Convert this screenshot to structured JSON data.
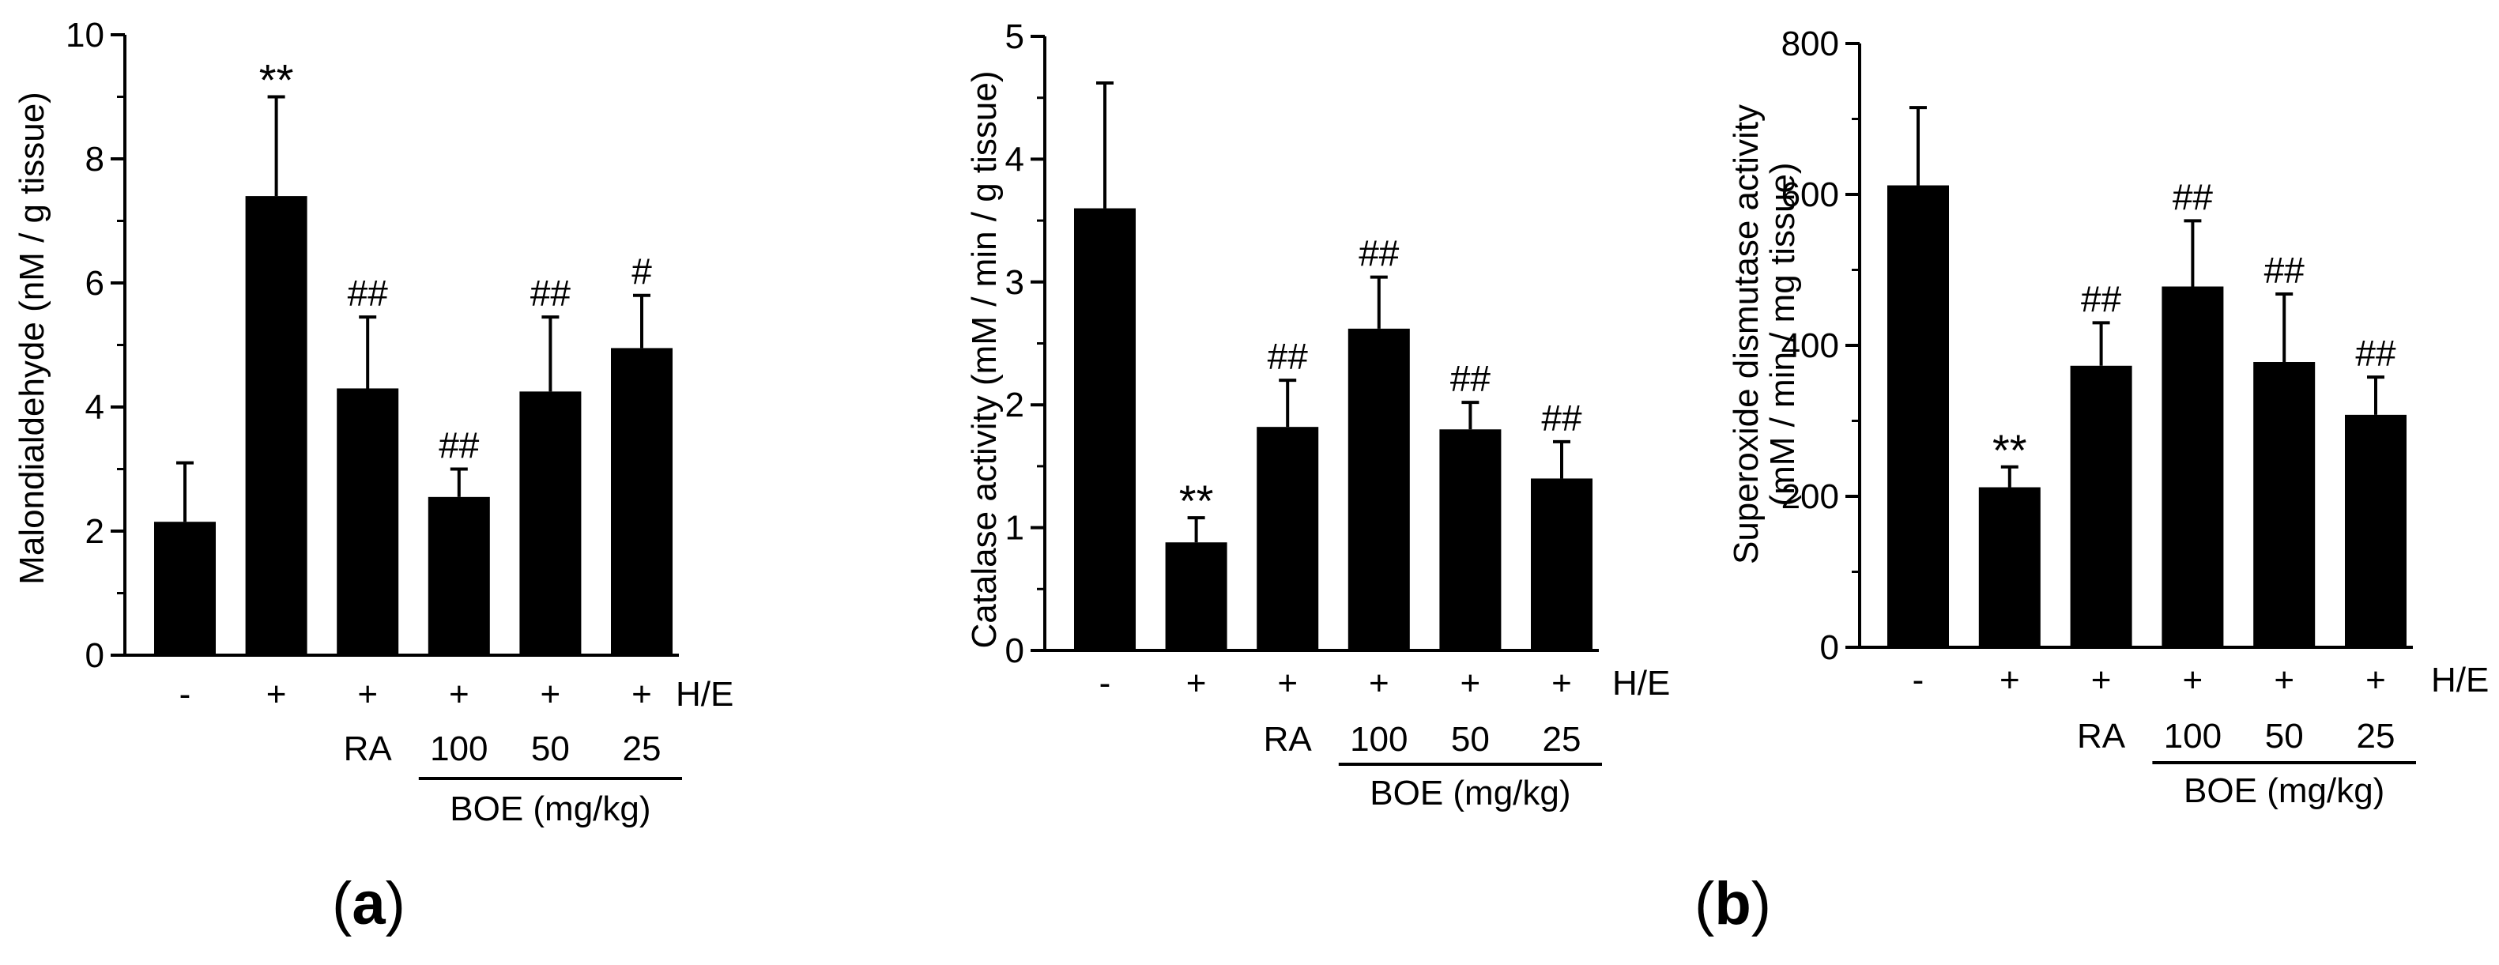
{
  "figure": {
    "panel_labels": [
      {
        "open": "(",
        "letter": "a",
        "close": ")"
      },
      {
        "open": "(",
        "letter": "b",
        "close": ")"
      }
    ],
    "group_rows": {
      "he_signs": [
        "-",
        "+",
        "+",
        "+",
        "+",
        "+"
      ],
      "he_label": "H/E",
      "treatments": [
        "",
        "",
        "RA",
        "100",
        "50",
        "25"
      ],
      "boe_label": "BOE (mg/kg)"
    }
  },
  "chart_data": [
    {
      "type": "bar",
      "ylabel": "Malondialdehyde (nM / g tissue)",
      "ylim": [
        0,
        10
      ],
      "yticks": [
        "0",
        "2",
        "4",
        "6",
        "8",
        "10"
      ],
      "categories": [
        "-",
        "+",
        "+ RA",
        "+ BOE 100",
        "+ BOE 50",
        "+ BOE 25"
      ],
      "values": [
        2.15,
        7.4,
        4.3,
        2.55,
        4.25,
        4.95
      ],
      "errors": [
        0.95,
        1.6,
        1.15,
        0.45,
        1.2,
        0.85
      ],
      "annotations": [
        "",
        "**",
        "##",
        "##",
        "##",
        "#"
      ]
    },
    {
      "type": "bar",
      "ylabel": "Catalase activity (mM / min / g tissue)",
      "ylim": [
        0,
        5
      ],
      "yticks": [
        "0",
        "1",
        "2",
        "3",
        "4",
        "5"
      ],
      "categories": [
        "-",
        "+",
        "+ RA",
        "+ BOE 100",
        "+ BOE 50",
        "+ BOE 25"
      ],
      "values": [
        3.6,
        0.88,
        1.82,
        2.62,
        1.8,
        1.4
      ],
      "errors": [
        1.02,
        0.2,
        0.38,
        0.42,
        0.22,
        0.3
      ],
      "annotations": [
        "",
        "**",
        "##",
        "##",
        "##",
        "##"
      ]
    },
    {
      "type": "bar",
      "ylabel": [
        "Superoxide dismutase activity",
        "(mM / min / mg tissue)"
      ],
      "ylim": [
        0,
        800
      ],
      "yticks": [
        "0",
        "200",
        "400",
        "600",
        "800"
      ],
      "categories": [
        "-",
        "+",
        "+ RA",
        "+ BOE 100",
        "+ BOE 50",
        "+ BOE 25"
      ],
      "values": [
        612,
        212,
        373,
        478,
        378,
        308
      ],
      "errors": [
        103,
        27,
        57,
        87,
        90,
        50
      ],
      "annotations": [
        "",
        "**",
        "##",
        "##",
        "##",
        "##"
      ]
    }
  ]
}
